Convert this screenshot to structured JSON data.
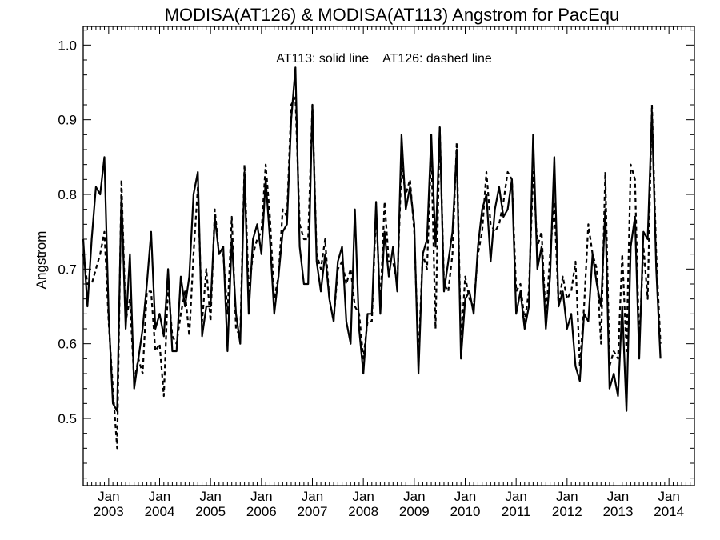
{
  "chart_data": {
    "type": "line",
    "title": "MODISA(AT126) & MODISA(AT113)  Angstrom for PacEqu",
    "legend_text": "AT113: solid line    AT126: dashed line",
    "ylabel": "Angstrom",
    "xlabel": "",
    "x_start": "2002-07",
    "x_step": "month",
    "xlim": [
      "2002-07",
      "2014-07"
    ],
    "ylim": [
      0.41,
      1.025
    ],
    "y_ticks": [
      0.5,
      0.6,
      0.7,
      0.8,
      0.9,
      1.0
    ],
    "y_tick_labels": [
      "0.5",
      "0.6",
      "0.7",
      "0.8",
      "0.9",
      "1.0"
    ],
    "x_major_ticks": [
      {
        "date": "2003-01",
        "month": "Jan",
        "year": "2003"
      },
      {
        "date": "2004-01",
        "month": "Jan",
        "year": "2004"
      },
      {
        "date": "2005-01",
        "month": "Jan",
        "year": "2005"
      },
      {
        "date": "2006-01",
        "month": "Jan",
        "year": "2006"
      },
      {
        "date": "2007-01",
        "month": "Jan",
        "year": "2007"
      },
      {
        "date": "2008-01",
        "month": "Jan",
        "year": "2008"
      },
      {
        "date": "2009-01",
        "month": "Jan",
        "year": "2009"
      },
      {
        "date": "2010-01",
        "month": "Jan",
        "year": "2010"
      },
      {
        "date": "2011-01",
        "month": "Jan",
        "year": "2011"
      },
      {
        "date": "2012-01",
        "month": "Jan",
        "year": "2012"
      },
      {
        "date": "2013-01",
        "month": "Jan",
        "year": "2013"
      },
      {
        "date": "2014-01",
        "month": "Jan",
        "year": "2014"
      }
    ],
    "series": [
      {
        "style": "solid",
        "values": [
          0.74,
          0.65,
          0.74,
          0.81,
          0.8,
          0.85,
          0.64,
          0.52,
          0.51,
          0.8,
          0.62,
          0.72,
          0.54,
          0.58,
          0.62,
          0.68,
          0.75,
          0.62,
          0.64,
          0.61,
          0.7,
          0.59,
          0.59,
          0.69,
          0.65,
          0.69,
          0.8,
          0.83,
          0.61,
          0.65,
          0.65,
          0.77,
          0.72,
          0.73,
          0.59,
          0.74,
          0.64,
          0.6,
          0.83,
          0.64,
          0.74,
          0.76,
          0.72,
          0.82,
          0.74,
          0.64,
          0.69,
          0.75,
          0.76,
          0.9,
          0.97,
          0.73,
          0.68,
          0.68,
          0.92,
          0.71,
          0.67,
          0.72,
          0.66,
          0.63,
          0.71,
          0.73,
          0.63,
          0.6,
          0.78,
          0.62,
          0.56,
          0.64,
          0.64,
          0.79,
          0.64,
          0.75,
          0.69,
          0.73,
          0.67,
          0.88,
          0.78,
          0.81,
          0.76,
          0.56,
          0.72,
          0.74,
          0.88,
          0.73,
          0.89,
          0.67,
          0.71,
          0.75,
          0.86,
          0.58,
          0.66,
          0.67,
          0.64,
          0.73,
          0.78,
          0.8,
          0.71,
          0.78,
          0.81,
          0.77,
          0.78,
          0.82,
          0.64,
          0.67,
          0.62,
          0.65,
          0.88,
          0.7,
          0.73,
          0.62,
          0.69,
          0.85,
          0.65,
          0.67,
          0.62,
          0.64,
          0.57,
          0.55,
          0.64,
          0.63,
          0.72,
          0.68,
          0.65,
          0.78,
          0.54,
          0.56,
          0.53,
          0.65,
          0.51,
          0.73,
          0.77,
          0.58,
          0.75,
          0.74,
          0.91,
          0.7,
          0.58
        ],
        "name": ""
      },
      {
        "style": "dashed",
        "values": [
          0.72,
          0.68,
          0.68,
          0.7,
          0.72,
          0.75,
          0.63,
          0.54,
          0.46,
          0.82,
          0.63,
          0.66,
          0.55,
          0.58,
          0.56,
          0.67,
          0.67,
          0.59,
          0.6,
          0.53,
          0.68,
          0.61,
          0.6,
          0.64,
          0.67,
          0.61,
          0.72,
          0.81,
          0.63,
          0.7,
          0.63,
          0.78,
          0.72,
          0.72,
          0.64,
          0.77,
          0.62,
          0.61,
          0.84,
          0.67,
          0.72,
          0.74,
          0.75,
          0.84,
          0.77,
          0.66,
          0.69,
          0.78,
          0.77,
          0.92,
          0.93,
          0.76,
          0.74,
          0.74,
          0.92,
          0.72,
          0.7,
          0.74,
          0.66,
          0.63,
          0.7,
          0.71,
          0.68,
          0.7,
          0.65,
          0.64,
          0.58,
          0.63,
          0.63,
          0.78,
          0.65,
          0.79,
          0.71,
          0.71,
          0.68,
          0.84,
          0.8,
          0.82,
          0.75,
          0.58,
          0.72,
          0.7,
          0.86,
          0.62,
          0.89,
          0.68,
          0.67,
          0.72,
          0.87,
          0.6,
          0.69,
          0.66,
          0.65,
          0.72,
          0.75,
          0.83,
          0.76,
          0.75,
          0.76,
          0.79,
          0.83,
          0.82,
          0.67,
          0.68,
          0.63,
          0.67,
          0.83,
          0.73,
          0.75,
          0.63,
          0.72,
          0.79,
          0.65,
          0.69,
          0.66,
          0.67,
          0.71,
          0.57,
          0.65,
          0.76,
          0.72,
          0.7,
          0.6,
          0.83,
          0.57,
          0.59,
          0.58,
          0.72,
          0.59,
          0.84,
          0.82,
          0.6,
          0.73,
          0.66,
          0.92,
          0.72,
          0.6
        ],
        "name": ""
      }
    ],
    "grid": false,
    "legend_position": "top-center"
  }
}
